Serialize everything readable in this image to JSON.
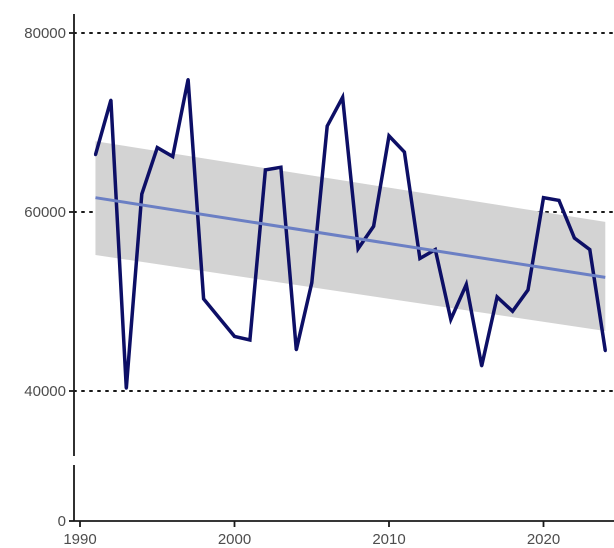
{
  "chart_data": {
    "type": "line",
    "title": "",
    "xlabel": "",
    "ylabel": "",
    "xlim": [
      1990,
      2024
    ],
    "ylim": [
      0,
      80000
    ],
    "axis_break": true,
    "x_ticks": [
      1990,
      2000,
      2010,
      2020
    ],
    "x_tick_labels": [
      "1990",
      "2000",
      "2010",
      "2020"
    ],
    "y_ticks": [
      0,
      40000,
      60000,
      80000
    ],
    "y_tick_labels": [
      "0",
      "40000",
      "60000",
      "80000"
    ],
    "reference_lines": [
      40000,
      60000,
      80000
    ],
    "grid": false,
    "series": [
      {
        "x": [
          1991,
          1992,
          1993,
          1994,
          1995,
          1996,
          1997,
          1998,
          1999,
          2000,
          2001,
          2002,
          2003,
          2004,
          2005,
          2006,
          2007,
          2008,
          2009,
          2010,
          2011,
          2012,
          2013,
          2014,
          2015,
          2016,
          2017,
          2018,
          2019,
          2020,
          2021,
          2022,
          2023,
          2024
        ],
        "values": [
          66400,
          72500,
          40300,
          62000,
          67200,
          66200,
          74800,
          50300,
          48200,
          46100,
          45700,
          64700,
          65000,
          44600,
          52100,
          69600,
          72800,
          55900,
          58400,
          68500,
          66700,
          54800,
          55800,
          48000,
          51900,
          42800,
          50500,
          48900,
          51300,
          61600,
          61300,
          57100,
          55800,
          44500
        ],
        "color": "#0d0f66"
      }
    ],
    "trend": {
      "type": "linear-fit",
      "x": [
        1991,
        2024
      ],
      "y": [
        61600,
        52700
      ],
      "ci_lower": [
        55200,
        46700
      ],
      "ci_upper": [
        67900,
        58900
      ],
      "color": "#6b7fc4",
      "band_color": "#d3d3d3"
    }
  }
}
